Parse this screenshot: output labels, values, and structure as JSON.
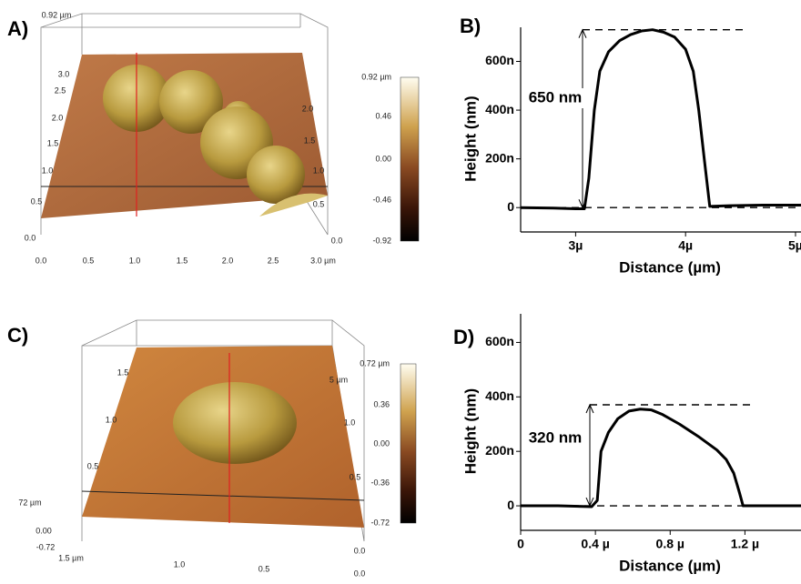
{
  "panels": {
    "a": "A)",
    "b": "B)",
    "c": "C)",
    "d": "D)"
  },
  "images": [
    {
      "top_label": "0.92 µm",
      "colorbar_ticks": [
        "0.92 µm",
        "0.46",
        "0.00",
        "-0.46",
        "-0.92"
      ],
      "x_ticks": [
        "0.0",
        "0.5",
        "1.0",
        "1.5",
        "2.0",
        "2.5",
        "3.0 µm"
      ],
      "left_ticks": [
        "0.0",
        "0.5",
        "1.0",
        "1.5",
        "2.0",
        "2.5",
        "3.0"
      ],
      "right_ticks": [
        "0.0",
        "0.5",
        "1.0",
        "1.5",
        "2.0"
      ]
    },
    {
      "colorbar_ticks": [
        "0.72 µm",
        "0.36",
        "0.00",
        "-0.36",
        "-0.72"
      ],
      "x_ticks": [
        "1.5 µm",
        "1.0",
        "0.5",
        "0.0"
      ],
      "left_ticks": [
        "72 µm",
        "0.00",
        "-0.72"
      ],
      "side_ticks": [
        "1.5",
        "1.0",
        "0.5"
      ],
      "right_ticks": [
        "5 µm",
        "1.0",
        "0.5",
        "0.0"
      ]
    }
  ],
  "chart_data": [
    {
      "type": "line",
      "x_label": "Distance (µm)",
      "y_label": "Height (nm)",
      "annotation": "650 nm",
      "reference_lines": [
        0,
        730
      ],
      "color": "#000000",
      "x": [
        2.5,
        2.8,
        3.0,
        3.08,
        3.12,
        3.17,
        3.22,
        3.3,
        3.4,
        3.5,
        3.6,
        3.7,
        3.8,
        3.9,
        4.0,
        4.07,
        4.12,
        4.17,
        4.22,
        4.4,
        4.7,
        5.05
      ],
      "values": [
        0,
        -2,
        -5,
        -5,
        120,
        400,
        560,
        640,
        685,
        710,
        725,
        730,
        720,
        700,
        650,
        560,
        400,
        200,
        5,
        8,
        10,
        10
      ],
      "xlim": [
        2.5,
        5.05
      ],
      "ylim": [
        -100,
        740
      ],
      "xticks": [
        {
          "value": 3,
          "label": "3µ"
        },
        {
          "value": 4,
          "label": "4µ"
        },
        {
          "value": 5,
          "label": "5µ"
        }
      ],
      "yticks": [
        0,
        {
          "value": 200,
          "label": "200n"
        },
        {
          "value": 400,
          "label": "400n"
        },
        {
          "value": 600,
          "label": "600n"
        }
      ]
    },
    {
      "type": "line",
      "x_label": "Distance (µm)",
      "y_label": "Height (nm)",
      "annotation": "320 nm",
      "reference_lines": [
        0,
        371
      ],
      "color": "#000000",
      "x": [
        0,
        0.2,
        0.38,
        0.41,
        0.43,
        0.47,
        0.52,
        0.58,
        0.64,
        0.7,
        0.76,
        0.85,
        0.95,
        1.05,
        1.1,
        1.14,
        1.17,
        1.19,
        1.3,
        1.5
      ],
      "values": [
        0,
        0,
        -3,
        20,
        200,
        270,
        320,
        348,
        355,
        352,
        335,
        300,
        255,
        205,
        170,
        120,
        50,
        0,
        0,
        0
      ],
      "xlim": [
        0,
        1.5
      ],
      "ylim": [
        -90,
        705
      ],
      "xticks": [
        0,
        {
          "value": 0.4,
          "label": "0.4 µ"
        },
        {
          "value": 0.8,
          "label": "0.8 µ"
        },
        {
          "value": 1.2,
          "label": "1.2 µ"
        }
      ],
      "yticks": [
        0,
        {
          "value": 200,
          "label": "200n"
        },
        {
          "value": 400,
          "label": "400n"
        },
        {
          "value": 600,
          "label": "600n"
        }
      ]
    }
  ]
}
